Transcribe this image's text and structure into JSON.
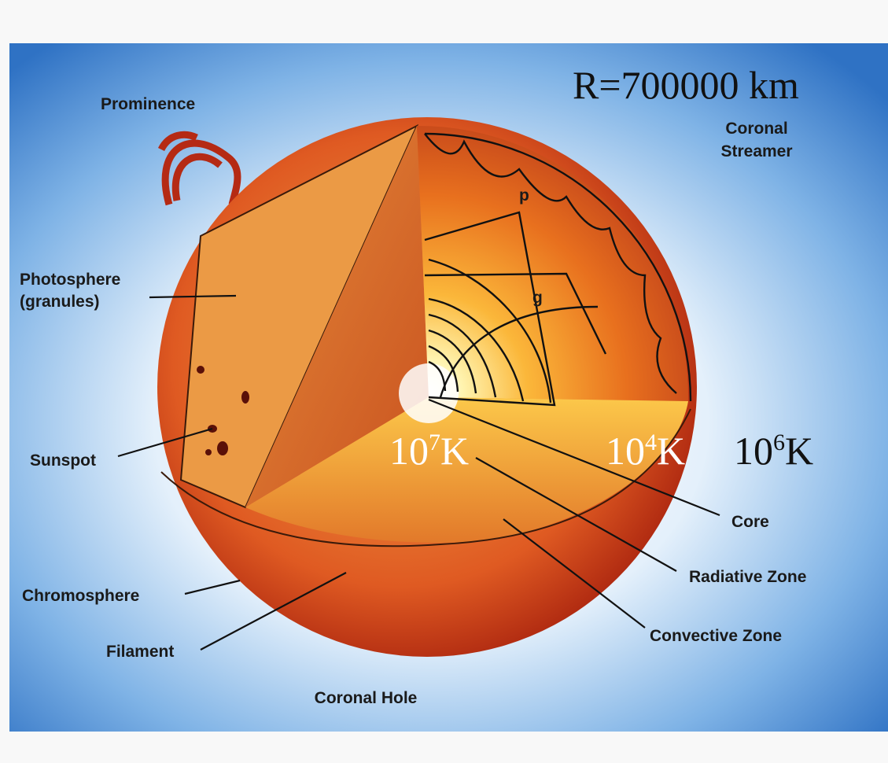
{
  "radius_label": "R=700000 km",
  "labels": {
    "prominence": "Prominence",
    "coronal_streamer": [
      "Coronal",
      "Streamer"
    ],
    "photosphere": [
      "Photosphere",
      "(granules)"
    ],
    "sunspot": "Sunspot",
    "chromosphere": "Chromosphere",
    "filament": "Filament",
    "coronal_hole": "Coronal Hole",
    "core": "Core",
    "radiative_zone": "Radiative Zone",
    "convective_zone": "Convective Zone",
    "p_modes": "p",
    "g_modes": "g"
  },
  "temperatures": [
    {
      "base": "10",
      "exponent": "7",
      "unit": "K"
    },
    {
      "base": "10",
      "exponent": "4",
      "unit": "K"
    },
    {
      "base": "10",
      "exponent": "6",
      "unit": "K"
    }
  ]
}
